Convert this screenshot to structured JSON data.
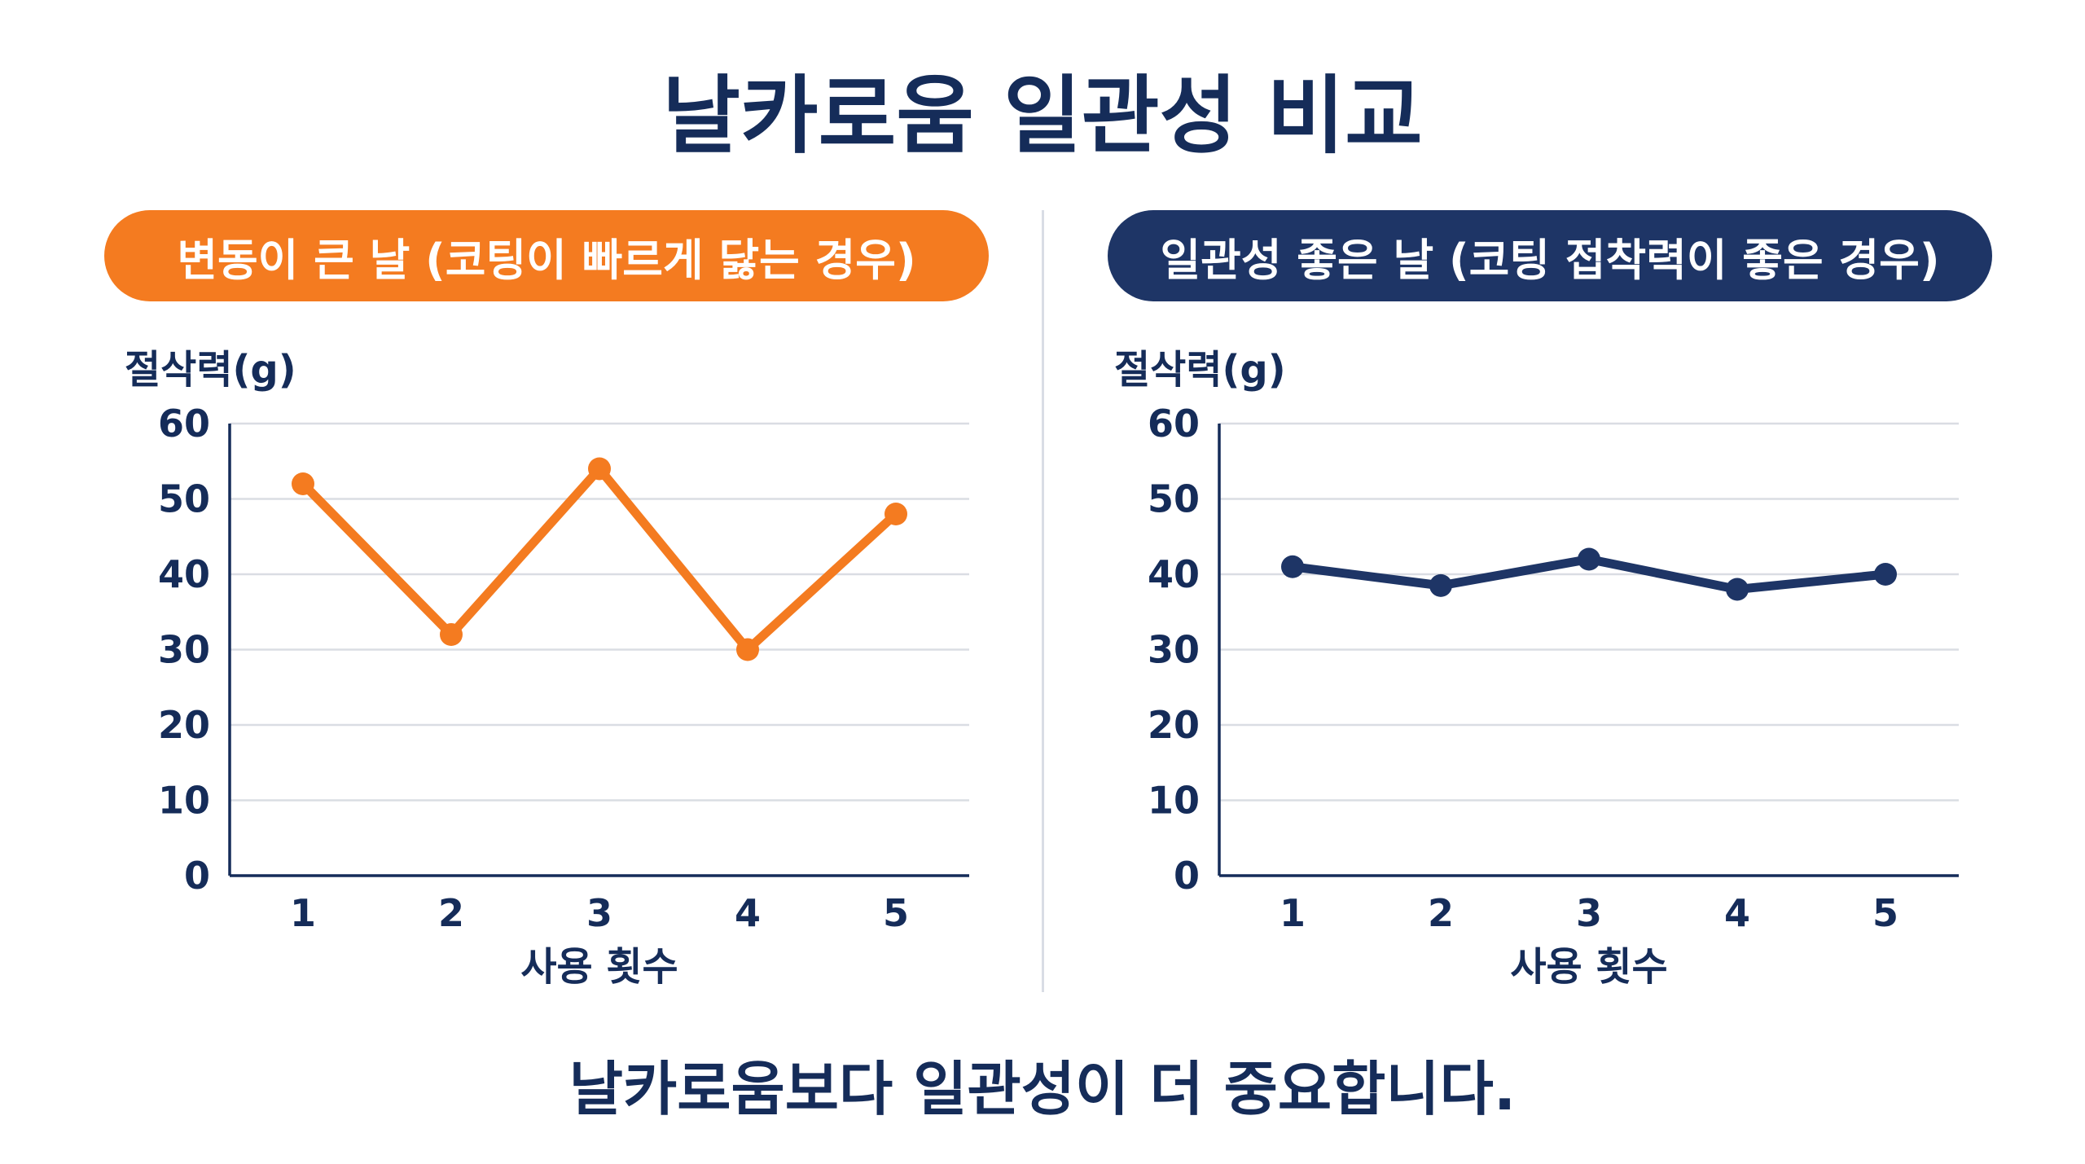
{
  "title": "날카로움 일관성 비교",
  "footer_text": "날카로움보다 일관성이 더 중요합니다.",
  "colors": {
    "orange": "#f47b20",
    "navy": "#1e3566",
    "text": "#152c59",
    "grid": "#dadde3"
  },
  "chart_data": [
    {
      "type": "line",
      "title": "변동이 큰 날 (코팅이 빠르게 닳는 경우)",
      "ylabel": "절삭력(g)",
      "xlabel": "사용 횟수",
      "x": [
        1,
        2,
        3,
        4,
        5
      ],
      "ylim": [
        0,
        60
      ],
      "yticks": [
        0,
        10,
        20,
        30,
        40,
        50,
        60
      ],
      "grid": true,
      "color": "#f47b20",
      "series": [
        {
          "values": [
            52,
            32,
            54,
            30,
            48
          ]
        }
      ]
    },
    {
      "type": "line",
      "title": "일관성 좋은 날 (코팅 접착력이 좋은 경우)",
      "ylabel": "절삭력(g)",
      "xlabel": "사용 횟수",
      "x": [
        1,
        2,
        3,
        4,
        5
      ],
      "ylim": [
        0,
        60
      ],
      "yticks": [
        0,
        10,
        20,
        30,
        40,
        50,
        60
      ],
      "grid": true,
      "color": "#1e3566",
      "series": [
        {
          "values": [
            41,
            38.5,
            42,
            38,
            40
          ]
        }
      ]
    }
  ]
}
